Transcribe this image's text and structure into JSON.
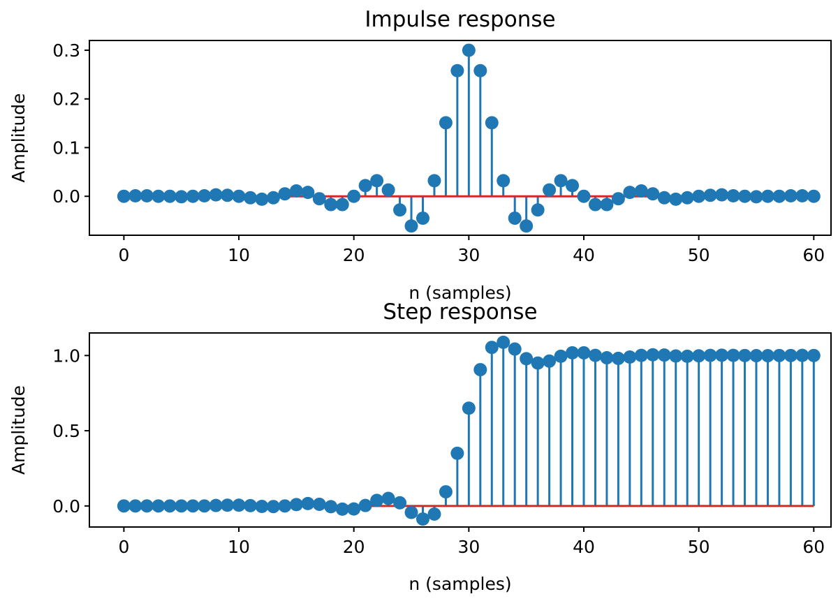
{
  "chart_data": [
    {
      "type": "stem",
      "title": "Impulse response",
      "xlabel": "n (samples)",
      "ylabel": "Amplitude",
      "xlim": [
        -3,
        61.5
      ],
      "ylim": [
        -0.08,
        0.32
      ],
      "xticks": [
        0,
        10,
        20,
        30,
        40,
        50,
        60
      ],
      "xtick_labels": [
        "0",
        "10",
        "20",
        "30",
        "40",
        "50",
        "60"
      ],
      "yticks": [
        0.0,
        0.1,
        0.2,
        0.3
      ],
      "ytick_labels": [
        "0.0",
        "0.1",
        "0.2",
        "0.3"
      ],
      "grid": false,
      "colors": {
        "stem": "#1f77b4",
        "baseline": "#d62728"
      },
      "x": [
        0,
        1,
        2,
        3,
        4,
        5,
        6,
        7,
        8,
        9,
        10,
        11,
        12,
        13,
        14,
        15,
        16,
        17,
        18,
        19,
        20,
        21,
        22,
        23,
        24,
        25,
        26,
        27,
        28,
        29,
        30,
        31,
        32,
        33,
        34,
        35,
        36,
        37,
        38,
        39,
        40,
        41,
        42,
        43,
        44,
        45,
        46,
        47,
        48,
        49,
        50,
        51,
        52,
        53,
        54,
        55,
        56,
        57,
        58,
        59,
        60
      ],
      "y": [
        0.0,
        0.001,
        0.001,
        0.0,
        0.0,
        -0.001,
        0.0,
        0.001,
        0.003,
        0.002,
        0.0,
        -0.003,
        -0.006,
        -0.003,
        0.005,
        0.011,
        0.008,
        -0.005,
        -0.017,
        -0.017,
        0.0,
        0.022,
        0.032,
        0.013,
        -0.028,
        -0.061,
        -0.045,
        0.032,
        0.151,
        0.258,
        0.3,
        0.258,
        0.151,
        0.032,
        -0.045,
        -0.061,
        -0.028,
        0.013,
        0.032,
        0.022,
        0.0,
        -0.017,
        -0.017,
        -0.005,
        0.008,
        0.011,
        0.005,
        -0.003,
        -0.006,
        -0.003,
        0.0,
        0.002,
        0.003,
        0.001,
        0.0,
        -0.001,
        0.0,
        0.0,
        0.001,
        0.001,
        0.0
      ]
    },
    {
      "type": "stem",
      "title": "Step response",
      "xlabel": "n (samples)",
      "ylabel": "Amplitude",
      "xlim": [
        -3,
        61.5
      ],
      "ylim": [
        -0.14,
        1.15
      ],
      "xticks": [
        0,
        10,
        20,
        30,
        40,
        50,
        60
      ],
      "xtick_labels": [
        "0",
        "10",
        "20",
        "30",
        "40",
        "50",
        "60"
      ],
      "yticks": [
        0.0,
        0.5,
        1.0
      ],
      "ytick_labels": [
        "0.0",
        "0.5",
        "1.0"
      ],
      "grid": false,
      "colors": {
        "stem": "#1f77b4",
        "baseline": "#d62728"
      },
      "x": [
        0,
        1,
        2,
        3,
        4,
        5,
        6,
        7,
        8,
        9,
        10,
        11,
        12,
        13,
        14,
        15,
        16,
        17,
        18,
        19,
        20,
        21,
        22,
        23,
        24,
        25,
        26,
        27,
        28,
        29,
        30,
        31,
        32,
        33,
        34,
        35,
        36,
        37,
        38,
        39,
        40,
        41,
        42,
        43,
        44,
        45,
        46,
        47,
        48,
        49,
        50,
        51,
        52,
        53,
        54,
        55,
        56,
        57,
        58,
        59,
        60
      ],
      "y": [
        0.0,
        0.0,
        0.0,
        0.0,
        0.0,
        0.0,
        0.0,
        0.0,
        0.003,
        0.005,
        0.005,
        0.002,
        -0.003,
        -0.004,
        0.0,
        0.009,
        0.016,
        0.011,
        -0.005,
        -0.021,
        -0.02,
        0.003,
        0.037,
        0.05,
        0.021,
        -0.043,
        -0.087,
        -0.054,
        0.094,
        0.35,
        0.65,
        0.906,
        1.054,
        1.088,
        1.043,
        0.979,
        0.95,
        0.963,
        0.995,
        1.018,
        1.018,
        1.001,
        0.985,
        0.981,
        0.99,
        1.001,
        1.005,
        1.003,
        0.997,
        0.995,
        0.998,
        1.001,
        1.002,
        1.001,
        1.0,
        0.999,
        0.999,
        1.0,
        1.0,
        1.001,
        1.0
      ]
    }
  ]
}
